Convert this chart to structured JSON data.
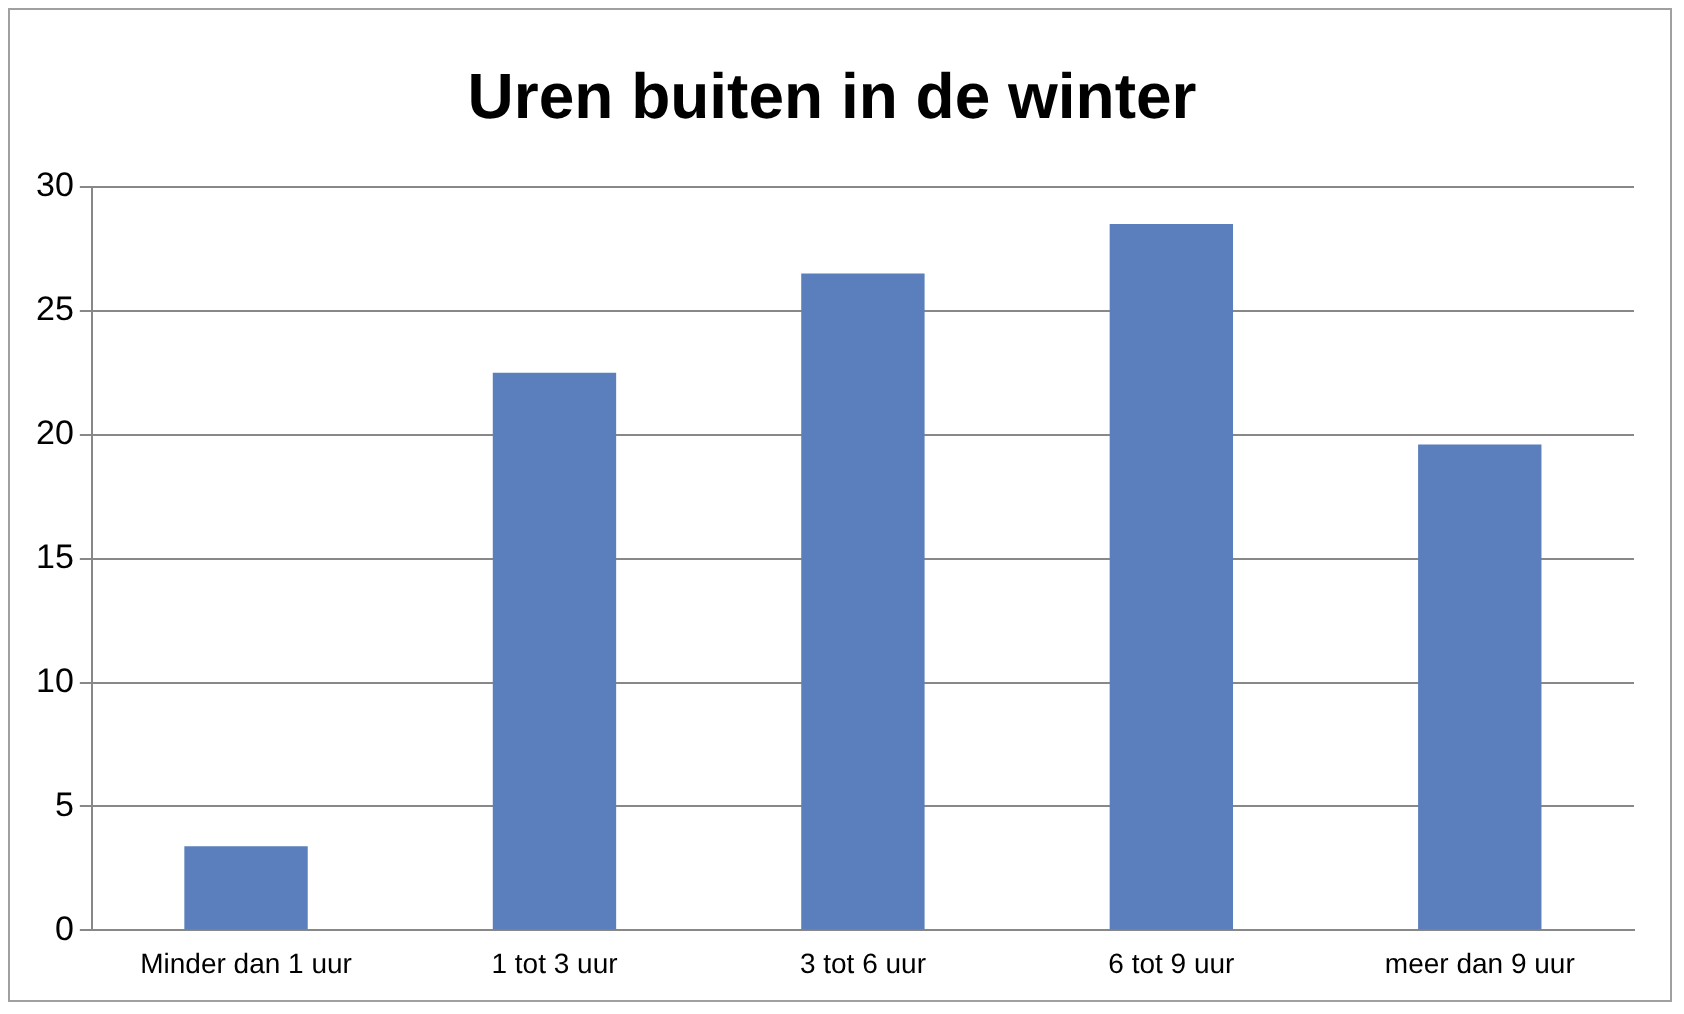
{
  "chart_data": {
    "type": "bar",
    "title": "Uren buiten in de winter",
    "categories": [
      "Minder dan 1 uur",
      "1 tot 3 uur",
      "3 tot 6 uur",
      "6 tot 9 uur",
      "meer dan 9 uur"
    ],
    "values": [
      3.4,
      22.5,
      26.5,
      28.5,
      19.6
    ],
    "color": "#5a7fbc",
    "ylim": [
      0,
      30
    ],
    "yticks": [
      0,
      5,
      10,
      15,
      20,
      25,
      30
    ],
    "grid": "y",
    "legend": false
  }
}
